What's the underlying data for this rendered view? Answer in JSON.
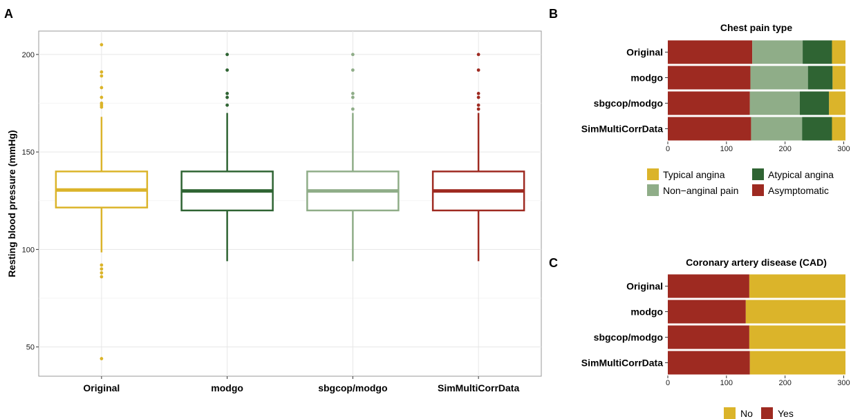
{
  "panels": {
    "a": "A",
    "b": "B",
    "c": "C"
  },
  "colors": {
    "Original": "#dbb42a",
    "modgo": "#2f6433",
    "sbgcop/modgo": "#8fad88",
    "SimMultiCorrData": "#9e2a21",
    "Typical angina": "#dbb42a",
    "Atypical angina": "#2f6433",
    "Non-anginal pain": "#8fad88",
    "Asymptomatic": "#9e2a21",
    "No": "#dbb42a",
    "Yes": "#9e2a21"
  },
  "chart_data": [
    {
      "type": "box",
      "panel": "A",
      "ylabel": "Resting blood pressure (mmHg)",
      "categories": [
        "Original",
        "modgo",
        "sbgcop/modgo",
        "SimMultiCorrData"
      ],
      "ylim": [
        35,
        212
      ],
      "yticks": [
        50,
        100,
        150,
        200
      ],
      "grid": true,
      "boxes": [
        {
          "name": "Original",
          "q1": 121.5,
          "median": 130.5,
          "q3": 140,
          "whisker_low": 98.5,
          "whisker_high": 168,
          "outliers": [
            205,
            191,
            189,
            183,
            178,
            175,
            174,
            173,
            92,
            90,
            88,
            86,
            44
          ]
        },
        {
          "name": "modgo",
          "q1": 120,
          "median": 130,
          "q3": 140,
          "whisker_low": 94,
          "whisker_high": 170,
          "outliers": [
            200,
            192,
            180,
            178,
            174
          ]
        },
        {
          "name": "sbgcop/modgo",
          "q1": 120,
          "median": 130,
          "q3": 140,
          "whisker_low": 94,
          "whisker_high": 170,
          "outliers": [
            200,
            192,
            180,
            178,
            172
          ]
        },
        {
          "name": "SimMultiCorrData",
          "q1": 120,
          "median": 130,
          "q3": 140,
          "whisker_low": 94,
          "whisker_high": 170,
          "outliers": [
            200,
            192,
            180,
            178,
            174,
            172
          ]
        }
      ]
    },
    {
      "type": "stacked-bar",
      "panel": "B",
      "title": "Chest pain type",
      "categories": [
        "Original",
        "modgo",
        "sbgcop/modgo",
        "SimMultiCorrData"
      ],
      "xlim": [
        0,
        303
      ],
      "xticks": [
        0,
        100,
        200,
        300
      ],
      "series": [
        {
          "name": "Asymptomatic",
          "values": [
            144,
            141,
            140,
            142
          ]
        },
        {
          "name": "Non−anginal pain",
          "values": [
            86,
            98,
            85,
            87
          ]
        },
        {
          "name": "Atypical angina",
          "values": [
            50,
            42,
            50,
            51
          ]
        },
        {
          "name": "Typical angina",
          "values": [
            23,
            22,
            28,
            23
          ]
        }
      ],
      "legend": {
        "position": "bottom",
        "items": [
          "Typical angina",
          "Atypical angina",
          "Non−anginal pain",
          "Asymptomatic"
        ]
      }
    },
    {
      "type": "stacked-bar",
      "panel": "C",
      "title": "Coronary artery disease (CAD)",
      "categories": [
        "Original",
        "modgo",
        "sbgcop/modgo",
        "SimMultiCorrData"
      ],
      "xlim": [
        0,
        303
      ],
      "xticks": [
        0,
        100,
        200,
        300
      ],
      "series": [
        {
          "name": "Yes",
          "values": [
            139,
            133,
            139,
            140
          ]
        },
        {
          "name": "No",
          "values": [
            164,
            170,
            164,
            163
          ]
        }
      ],
      "legend": {
        "position": "bottom",
        "items": [
          "No",
          "Yes"
        ]
      }
    }
  ]
}
